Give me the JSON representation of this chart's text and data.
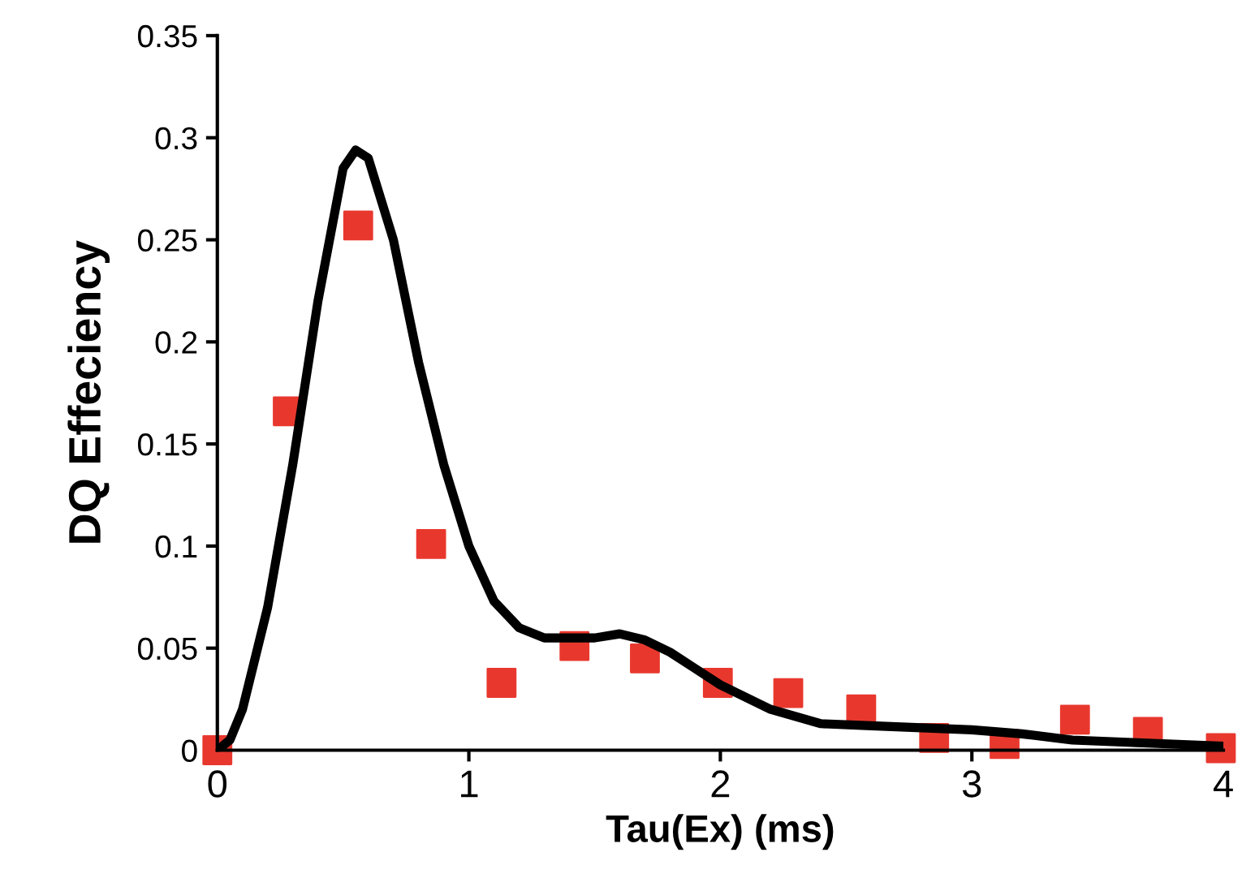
{
  "chart_data": {
    "type": "scatter",
    "xlabel": "Tau(Ex) (ms)",
    "ylabel": "DQ Effeciency",
    "xlim": [
      0,
      4
    ],
    "ylim": [
      0,
      0.35
    ],
    "xticks": [
      0,
      1,
      2,
      3,
      4
    ],
    "yticks": [
      0,
      0.05,
      0.1,
      0.15,
      0.2,
      0.25,
      0.3,
      0.35
    ],
    "grid": false,
    "legend": false,
    "series": [
      {
        "type": "line",
        "color": "#000000",
        "marker": "none",
        "x": [
          0,
          0.05,
          0.1,
          0.2,
          0.3,
          0.4,
          0.5,
          0.55,
          0.6,
          0.7,
          0.8,
          0.9,
          1.0,
          1.1,
          1.2,
          1.3,
          1.5,
          1.6,
          1.7,
          1.8,
          1.9,
          2.0,
          2.2,
          2.4,
          2.6,
          2.8,
          3.0,
          3.2,
          3.4,
          3.6,
          3.8,
          4.0
        ],
        "values": [
          0,
          0.005,
          0.02,
          0.07,
          0.14,
          0.22,
          0.285,
          0.294,
          0.29,
          0.25,
          0.19,
          0.14,
          0.1,
          0.073,
          0.06,
          0.055,
          0.055,
          0.057,
          0.054,
          0.048,
          0.04,
          0.032,
          0.02,
          0.013,
          0.012,
          0.011,
          0.01,
          0.008,
          0.005,
          0.004,
          0.003,
          0.002
        ]
      },
      {
        "color": "#e8382e",
        "marker": "square",
        "x": [
          0,
          0.28,
          0.56,
          0.85,
          1.13,
          1.42,
          1.7,
          1.99,
          2.27,
          2.56,
          2.85,
          3.13,
          3.41,
          3.7,
          3.99
        ],
        "values": [
          0,
          0.166,
          0.257,
          0.101,
          0.033,
          0.051,
          0.045,
          0.033,
          0.028,
          0.02,
          0.006,
          0.003,
          0.015,
          0.009,
          0.001
        ]
      }
    ]
  }
}
